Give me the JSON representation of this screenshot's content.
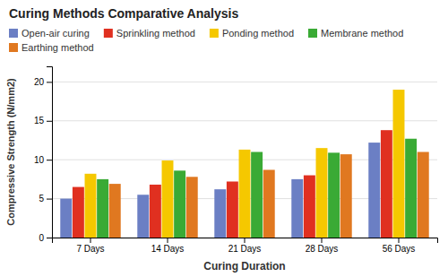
{
  "chart_data": {
    "type": "bar",
    "title": "Curing Methods Comparative Analysis",
    "xlabel": "Curing Duration",
    "ylabel": "Compressive Strength (N/mm2)",
    "categories": [
      "7 Days",
      "14 Days",
      "21 Days",
      "28 Days",
      "56 Days"
    ],
    "series": [
      {
        "name": "Open-air curing",
        "color": "#6b7fc4",
        "values": [
          5.0,
          5.5,
          6.2,
          7.5,
          12.2
        ]
      },
      {
        "name": "Sprinkling method",
        "color": "#e03020",
        "values": [
          6.5,
          6.8,
          7.2,
          8.0,
          13.8
        ]
      },
      {
        "name": "Ponding method",
        "color": "#f5c800",
        "values": [
          8.2,
          9.9,
          11.3,
          11.5,
          19.0
        ]
      },
      {
        "name": "Membrane method",
        "color": "#3aaa35",
        "values": [
          7.5,
          8.6,
          11.0,
          10.9,
          12.7
        ]
      },
      {
        "name": "Earthing method",
        "color": "#e07820",
        "values": [
          6.9,
          7.8,
          8.7,
          10.7,
          11.0
        ]
      }
    ],
    "ylim": [
      0,
      22
    ],
    "yticks": [
      0,
      5,
      10,
      15,
      20
    ],
    "grid": true,
    "legend": "top"
  }
}
